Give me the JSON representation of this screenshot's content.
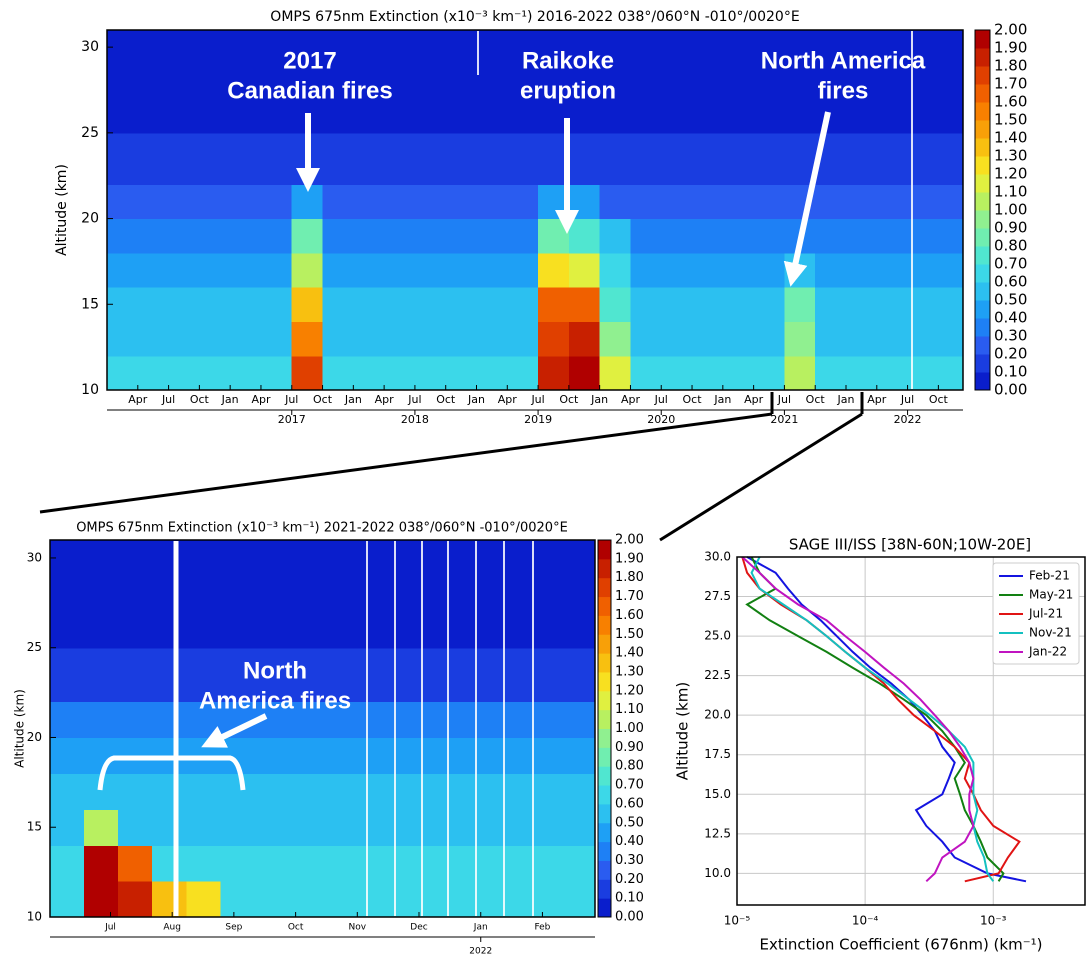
{
  "colorbar": {
    "ticks": [
      {
        "value": 0,
        "label": "0.00"
      },
      {
        "value": 0.1,
        "label": "0.10"
      },
      {
        "value": 0.2,
        "label": "0.20"
      },
      {
        "value": 0.3,
        "label": "0.30"
      },
      {
        "value": 0.4,
        "label": "0.40"
      },
      {
        "value": 0.5,
        "label": "0.50"
      },
      {
        "value": 0.6,
        "label": "0.60"
      },
      {
        "value": 0.7,
        "label": "0.70"
      },
      {
        "value": 0.8,
        "label": "0.80"
      },
      {
        "value": 0.9,
        "label": "0.90"
      },
      {
        "value": 1,
        "label": "1.00"
      },
      {
        "value": 1.1,
        "label": "1.10"
      },
      {
        "value": 1.2,
        "label": "1.20"
      },
      {
        "value": 1.3,
        "label": "1.30"
      },
      {
        "value": 1.4,
        "label": "1.40"
      },
      {
        "value": 1.5,
        "label": "1.50"
      },
      {
        "value": 1.6,
        "label": "1.60"
      },
      {
        "value": 1.7,
        "label": "1.70"
      },
      {
        "value": 1.8,
        "label": "1.80"
      },
      {
        "value": 1.9,
        "label": "1.90"
      },
      {
        "value": 2,
        "label": "2.00"
      }
    ],
    "colors": [
      "#0a1ecc",
      "#1a3de0",
      "#2a5cf0",
      "#1e80f5",
      "#1ea0f5",
      "#2cc0f0",
      "#3cd8e8",
      "#50e6d0",
      "#70eeb0",
      "#90f090",
      "#b8f060",
      "#e0f040",
      "#f8e020",
      "#f8c010",
      "#f8a008",
      "#f88000",
      "#f06000",
      "#e04000",
      "#c82000",
      "#b00000"
    ]
  },
  "chart_data": [
    {
      "type": "heatmap",
      "title": "OMPS 675nm Extinction (x10⁻³ km⁻¹) 2016-2022 038°/060°N -010°/0020°E",
      "y_label": "Altitude (km)",
      "xlim": [
        2016.0,
        2022.95
      ],
      "ylim": [
        10,
        31
      ],
      "yticks": [
        10,
        15,
        20,
        25,
        30
      ],
      "xticks": [
        {
          "value": 2016.25,
          "label": "Apr"
        },
        {
          "value": 2016.5,
          "label": "Jul"
        },
        {
          "value": 2016.75,
          "label": "Oct"
        },
        {
          "value": 2017,
          "label": "Jan"
        },
        {
          "value": 2017.25,
          "label": "Apr"
        },
        {
          "value": 2017.5,
          "label": "Jul"
        },
        {
          "value": 2017.75,
          "label": "Oct"
        },
        {
          "value": 2018,
          "label": "Jan"
        },
        {
          "value": 2018.25,
          "label": "Apr"
        },
        {
          "value": 2018.5,
          "label": "Jul"
        },
        {
          "value": 2018.75,
          "label": "Oct"
        },
        {
          "value": 2019,
          "label": "Jan"
        },
        {
          "value": 2019.25,
          "label": "Apr"
        },
        {
          "value": 2019.5,
          "label": "Jul"
        },
        {
          "value": 2019.75,
          "label": "Oct"
        },
        {
          "value": 2020,
          "label": "Jan"
        },
        {
          "value": 2020.25,
          "label": "Apr"
        },
        {
          "value": 2020.5,
          "label": "Jul"
        },
        {
          "value": 2020.75,
          "label": "Oct"
        },
        {
          "value": 2021,
          "label": "Jan"
        },
        {
          "value": 2021.25,
          "label": "Apr"
        },
        {
          "value": 2021.5,
          "label": "Jul"
        },
        {
          "value": 2021.75,
          "label": "Oct"
        },
        {
          "value": 2022,
          "label": "Jan"
        },
        {
          "value": 2022.25,
          "label": "Apr"
        },
        {
          "value": 2022.5,
          "label": "Jul"
        },
        {
          "value": 2022.75,
          "label": "Oct"
        }
      ],
      "year_ticks": [
        {
          "value": 2017.5,
          "label": "2017"
        },
        {
          "value": 2018.5,
          "label": "2018"
        },
        {
          "value": 2019.5,
          "label": "2019"
        },
        {
          "value": 2020.5,
          "label": "2020"
        },
        {
          "value": 2021.5,
          "label": "2021"
        },
        {
          "value": 2022.5,
          "label": "2022"
        }
      ],
      "x_edges": [
        2016,
        2016.25,
        2016.5,
        2016.75,
        2017,
        2017.25,
        2017.5,
        2017.75,
        2018,
        2018.25,
        2018.5,
        2018.75,
        2019,
        2019.25,
        2019.5,
        2019.75,
        2020,
        2020.25,
        2020.5,
        2020.75,
        2021,
        2021.25,
        2021.5,
        2021.75,
        2022,
        2022.25,
        2022.5,
        2022.75,
        2022.95
      ],
      "y_edges": [
        10,
        12,
        14,
        16,
        18,
        20,
        22,
        25,
        28,
        31
      ],
      "z": [
        [
          0.6,
          0.6,
          0.6,
          0.6,
          0.6,
          0.6,
          1.7,
          0.6,
          0.6,
          0.6,
          0.6,
          0.6,
          0.6,
          0.6,
          1.8,
          1.9,
          1.1,
          0.6,
          0.6,
          0.6,
          0.6,
          0.6,
          1.0,
          0.6,
          0.6,
          0.6,
          0.6,
          0.6
        ],
        [
          0.55,
          0.55,
          0.55,
          0.55,
          0.55,
          0.55,
          1.5,
          0.55,
          0.55,
          0.55,
          0.55,
          0.55,
          0.55,
          0.55,
          1.7,
          1.8,
          0.9,
          0.55,
          0.55,
          0.55,
          0.55,
          0.55,
          0.9,
          0.55,
          0.55,
          0.55,
          0.55,
          0.55
        ],
        [
          0.5,
          0.5,
          0.5,
          0.5,
          0.5,
          0.5,
          1.3,
          0.5,
          0.5,
          0.5,
          0.5,
          0.5,
          0.5,
          0.5,
          1.6,
          1.6,
          0.7,
          0.5,
          0.5,
          0.5,
          0.5,
          0.5,
          0.8,
          0.5,
          0.5,
          0.5,
          0.5,
          0.5
        ],
        [
          0.45,
          0.45,
          0.45,
          0.45,
          0.45,
          0.45,
          1.0,
          0.45,
          0.45,
          0.45,
          0.45,
          0.45,
          0.45,
          0.45,
          1.2,
          1.1,
          0.6,
          0.45,
          0.45,
          0.45,
          0.45,
          0.45,
          0.5,
          0.45,
          0.45,
          0.45,
          0.45,
          0.45
        ],
        [
          0.35,
          0.35,
          0.35,
          0.35,
          0.35,
          0.35,
          0.8,
          0.35,
          0.35,
          0.35,
          0.35,
          0.35,
          0.35,
          0.35,
          0.8,
          0.7,
          0.5,
          0.35,
          0.35,
          0.35,
          0.35,
          0.35,
          0.35,
          0.35,
          0.35,
          0.35,
          0.35,
          0.35
        ],
        [
          0.2,
          0.2,
          0.2,
          0.2,
          0.2,
          0.2,
          0.4,
          0.2,
          0.2,
          0.2,
          0.2,
          0.2,
          0.2,
          0.2,
          0.4,
          0.4,
          0.2,
          0.2,
          0.2,
          0.2,
          0.2,
          0.2,
          0.2,
          0.2,
          0.2,
          0.2,
          0.2,
          0.2
        ],
        [
          0.1,
          0.1,
          0.1,
          0.1,
          0.1,
          0.1,
          0.1,
          0.1,
          0.1,
          0.1,
          0.1,
          0.1,
          0.1,
          0.1,
          0.1,
          0.1,
          0.1,
          0.1,
          0.1,
          0.1,
          0.1,
          0.1,
          0.1,
          0.1,
          0.1,
          0.1,
          0.1,
          0.1
        ],
        [
          0.05,
          0.05,
          0.05,
          0.05,
          0.05,
          0.05,
          0.05,
          0.05,
          0.05,
          0.05,
          0.05,
          0.05,
          0.05,
          0.05,
          0.05,
          0.05,
          0.05,
          0.05,
          0.05,
          0.05,
          0.05,
          0.05,
          0.05,
          0.05,
          0.05,
          0.05,
          0.05,
          0.05
        ],
        [
          0.03,
          0.03,
          0.03,
          0.03,
          0.03,
          0.03,
          0.03,
          0.03,
          0.03,
          0.03,
          0.03,
          0.03,
          0.03,
          0.03,
          0.03,
          0.03,
          0.03,
          0.03,
          0.03,
          0.03,
          0.03,
          0.03,
          0.03,
          0.03,
          0.03,
          0.03,
          0.03,
          0.03
        ]
      ],
      "annotations": [
        {
          "lines": [
            "2017",
            "Canadian fires"
          ]
        },
        {
          "lines": [
            "Raikoke",
            "eruption"
          ]
        },
        {
          "lines": [
            "North America",
            "fires"
          ]
        }
      ]
    },
    {
      "type": "heatmap",
      "title": "OMPS 675nm Extinction (x10⁻³ km⁻¹) 2021-2022 038°/060°N -010°/0020°E",
      "y_label": "Altitude (km)",
      "xlim": [
        2021.46,
        2022.196
      ],
      "ylim": [
        10,
        31
      ],
      "yticks": [
        10,
        15,
        20,
        25,
        30
      ],
      "xticks": [
        {
          "value": 2021.5417,
          "label": "Jul"
        },
        {
          "value": 2021.625,
          "label": "Aug"
        },
        {
          "value": 2021.7083,
          "label": "Sep"
        },
        {
          "value": 2021.7917,
          "label": "Oct"
        },
        {
          "value": 2021.875,
          "label": "Nov"
        },
        {
          "value": 2021.9583,
          "label": "Dec"
        },
        {
          "value": 2022.0417,
          "label": "Jan"
        },
        {
          "value": 2022.125,
          "label": "Feb"
        }
      ],
      "year_ticks": [
        {
          "value": 2022.0417,
          "label": "2022"
        }
      ],
      "x_edges": [
        2021.46,
        2021.506,
        2021.552,
        2021.598,
        2021.644,
        2021.69,
        2021.736,
        2021.782,
        2021.828,
        2021.874,
        2021.92,
        2021.966,
        2022.012,
        2022.058,
        2022.104,
        2022.15,
        2022.196
      ],
      "y_edges": [
        10,
        12,
        14,
        16,
        18,
        20,
        22,
        25,
        28,
        31
      ],
      "z": [
        [
          0.65,
          1.9,
          1.8,
          1.3,
          1.2,
          0.65,
          0.65,
          0.65,
          0.65,
          0.65,
          0.65,
          0.65,
          0.65,
          0.65,
          0.65,
          0.65
        ],
        [
          0.6,
          1.9,
          1.6,
          0.6,
          0.6,
          0.6,
          0.6,
          0.6,
          0.6,
          0.6,
          0.6,
          0.6,
          0.6,
          0.6,
          0.6,
          0.6
        ],
        [
          0.55,
          1.0,
          0.55,
          0.55,
          0.55,
          0.55,
          0.55,
          0.55,
          0.55,
          0.55,
          0.55,
          0.55,
          0.55,
          0.55,
          0.55,
          0.55
        ],
        [
          0.5,
          0.5,
          0.5,
          0.5,
          0.5,
          0.5,
          0.5,
          0.5,
          0.5,
          0.5,
          0.5,
          0.5,
          0.5,
          0.5,
          0.5,
          0.5
        ],
        [
          0.45,
          0.45,
          0.45,
          0.45,
          0.45,
          0.45,
          0.45,
          0.45,
          0.45,
          0.45,
          0.45,
          0.45,
          0.45,
          0.45,
          0.45,
          0.45
        ],
        [
          0.35,
          0.35,
          0.35,
          0.35,
          0.35,
          0.35,
          0.35,
          0.35,
          0.35,
          0.35,
          0.35,
          0.35,
          0.35,
          0.35,
          0.35,
          0.35
        ],
        [
          0.15,
          0.15,
          0.15,
          0.15,
          0.15,
          0.15,
          0.15,
          0.15,
          0.15,
          0.15,
          0.15,
          0.15,
          0.15,
          0.15,
          0.15,
          0.15
        ],
        [
          0.05,
          0.05,
          0.05,
          0.05,
          0.05,
          0.05,
          0.05,
          0.05,
          0.05,
          0.05,
          0.05,
          0.05,
          0.05,
          0.05,
          0.05,
          0.05
        ],
        [
          0.02,
          0.02,
          0.02,
          0.02,
          0.02,
          0.02,
          0.02,
          0.02,
          0.02,
          0.02,
          0.02,
          0.02,
          0.02,
          0.02,
          0.02,
          0.02
        ]
      ],
      "annotations": [
        {
          "lines": [
            "North",
            "America fires"
          ]
        }
      ]
    },
    {
      "type": "line",
      "title": "SAGE III/ISS [38N-60N;10W-20E]",
      "x_label": "Extinction Coefficient (676nm) (km⁻¹)",
      "y_label": "Altitude (km)",
      "xscale": "log",
      "xlim": [
        1e-05,
        0.0052
      ],
      "ylim": [
        8,
        30
      ],
      "grid": true,
      "legend": "upper right",
      "xticks": [
        {
          "value": 1e-05,
          "label": "10⁻⁵"
        },
        {
          "value": 0.0001,
          "label": "10⁻⁴"
        },
        {
          "value": 0.001,
          "label": "10⁻³"
        }
      ],
      "yticks": [
        {
          "value": 10,
          "label": "10.0"
        },
        12.5,
        {
          "value": 15,
          "label": "15.0"
        },
        17.5,
        {
          "value": 20,
          "label": "20.0"
        },
        22.5,
        {
          "value": 25,
          "label": "25.0"
        },
        27.5,
        {
          "value": 30,
          "label": "30.0"
        }
      ],
      "y": [
        9.5,
        10,
        11,
        12,
        13,
        14,
        15,
        16,
        17,
        18,
        19,
        20,
        21,
        22,
        23,
        24,
        25,
        26,
        27,
        28,
        29,
        30
      ],
      "series": [
        {
          "name": "Feb-21",
          "color": "#1414e0",
          "values": [
            0.0018,
            0.0009,
            0.0005,
            0.0004,
            0.0003,
            0.00025,
            0.0004,
            0.00045,
            0.0005,
            0.0004,
            0.00035,
            0.00028,
            0.00022,
            0.00016,
            0.00011,
            8e-05,
            6e-05,
            4.5e-05,
            3.2e-05,
            2.5e-05,
            2e-05,
            1.2e-05
          ]
        },
        {
          "name": "May-21",
          "color": "#128012",
          "values": [
            0.0011,
            0.0012,
            0.0009,
            0.0008,
            0.0007,
            0.0006,
            0.00055,
            0.0005,
            0.0006,
            0.0005,
            0.0004,
            0.0003,
            0.0002,
            0.00013,
            8e-05,
            5e-05,
            3e-05,
            1.8e-05,
            1.2e-05,
            2e-05,
            1.5e-05,
            1.3e-05
          ]
        },
        {
          "name": "Jul-21",
          "color": "#e01414",
          "values": [
            0.0006,
            0.0011,
            0.0013,
            0.0016,
            0.001,
            0.0008,
            0.0007,
            0.0006,
            0.00065,
            0.0005,
            0.00035,
            0.00024,
            0.00018,
            0.00014,
            0.0001,
            7e-05,
            5e-05,
            3.5e-05,
            2.2e-05,
            1.5e-05,
            1.2e-05,
            1.1e-05
          ]
        },
        {
          "name": "Nov-21",
          "color": "#14c0c0",
          "values": [
            0.001,
            0.0009,
            0.00085,
            0.00075,
            0.0007,
            0.00075,
            0.0007,
            0.0007,
            0.0007,
            0.0006,
            0.00045,
            0.00032,
            0.00022,
            0.00015,
            0.0001,
            7e-05,
            5e-05,
            3.5e-05,
            2.3e-05,
            1.5e-05,
            1.3e-05,
            1.5e-05
          ]
        },
        {
          "name": "Jan-22",
          "color": "#c014c0",
          "values": [
            0.0003,
            0.00035,
            0.0004,
            0.0006,
            0.0007,
            0.00065,
            0.00065,
            0.0007,
            0.00065,
            0.00055,
            0.00045,
            0.00035,
            0.00027,
            0.0002,
            0.00014,
            0.0001,
            7e-05,
            5e-05,
            3e-05,
            2e-05,
            1.5e-05,
            1.1e-05
          ]
        }
      ]
    }
  ]
}
